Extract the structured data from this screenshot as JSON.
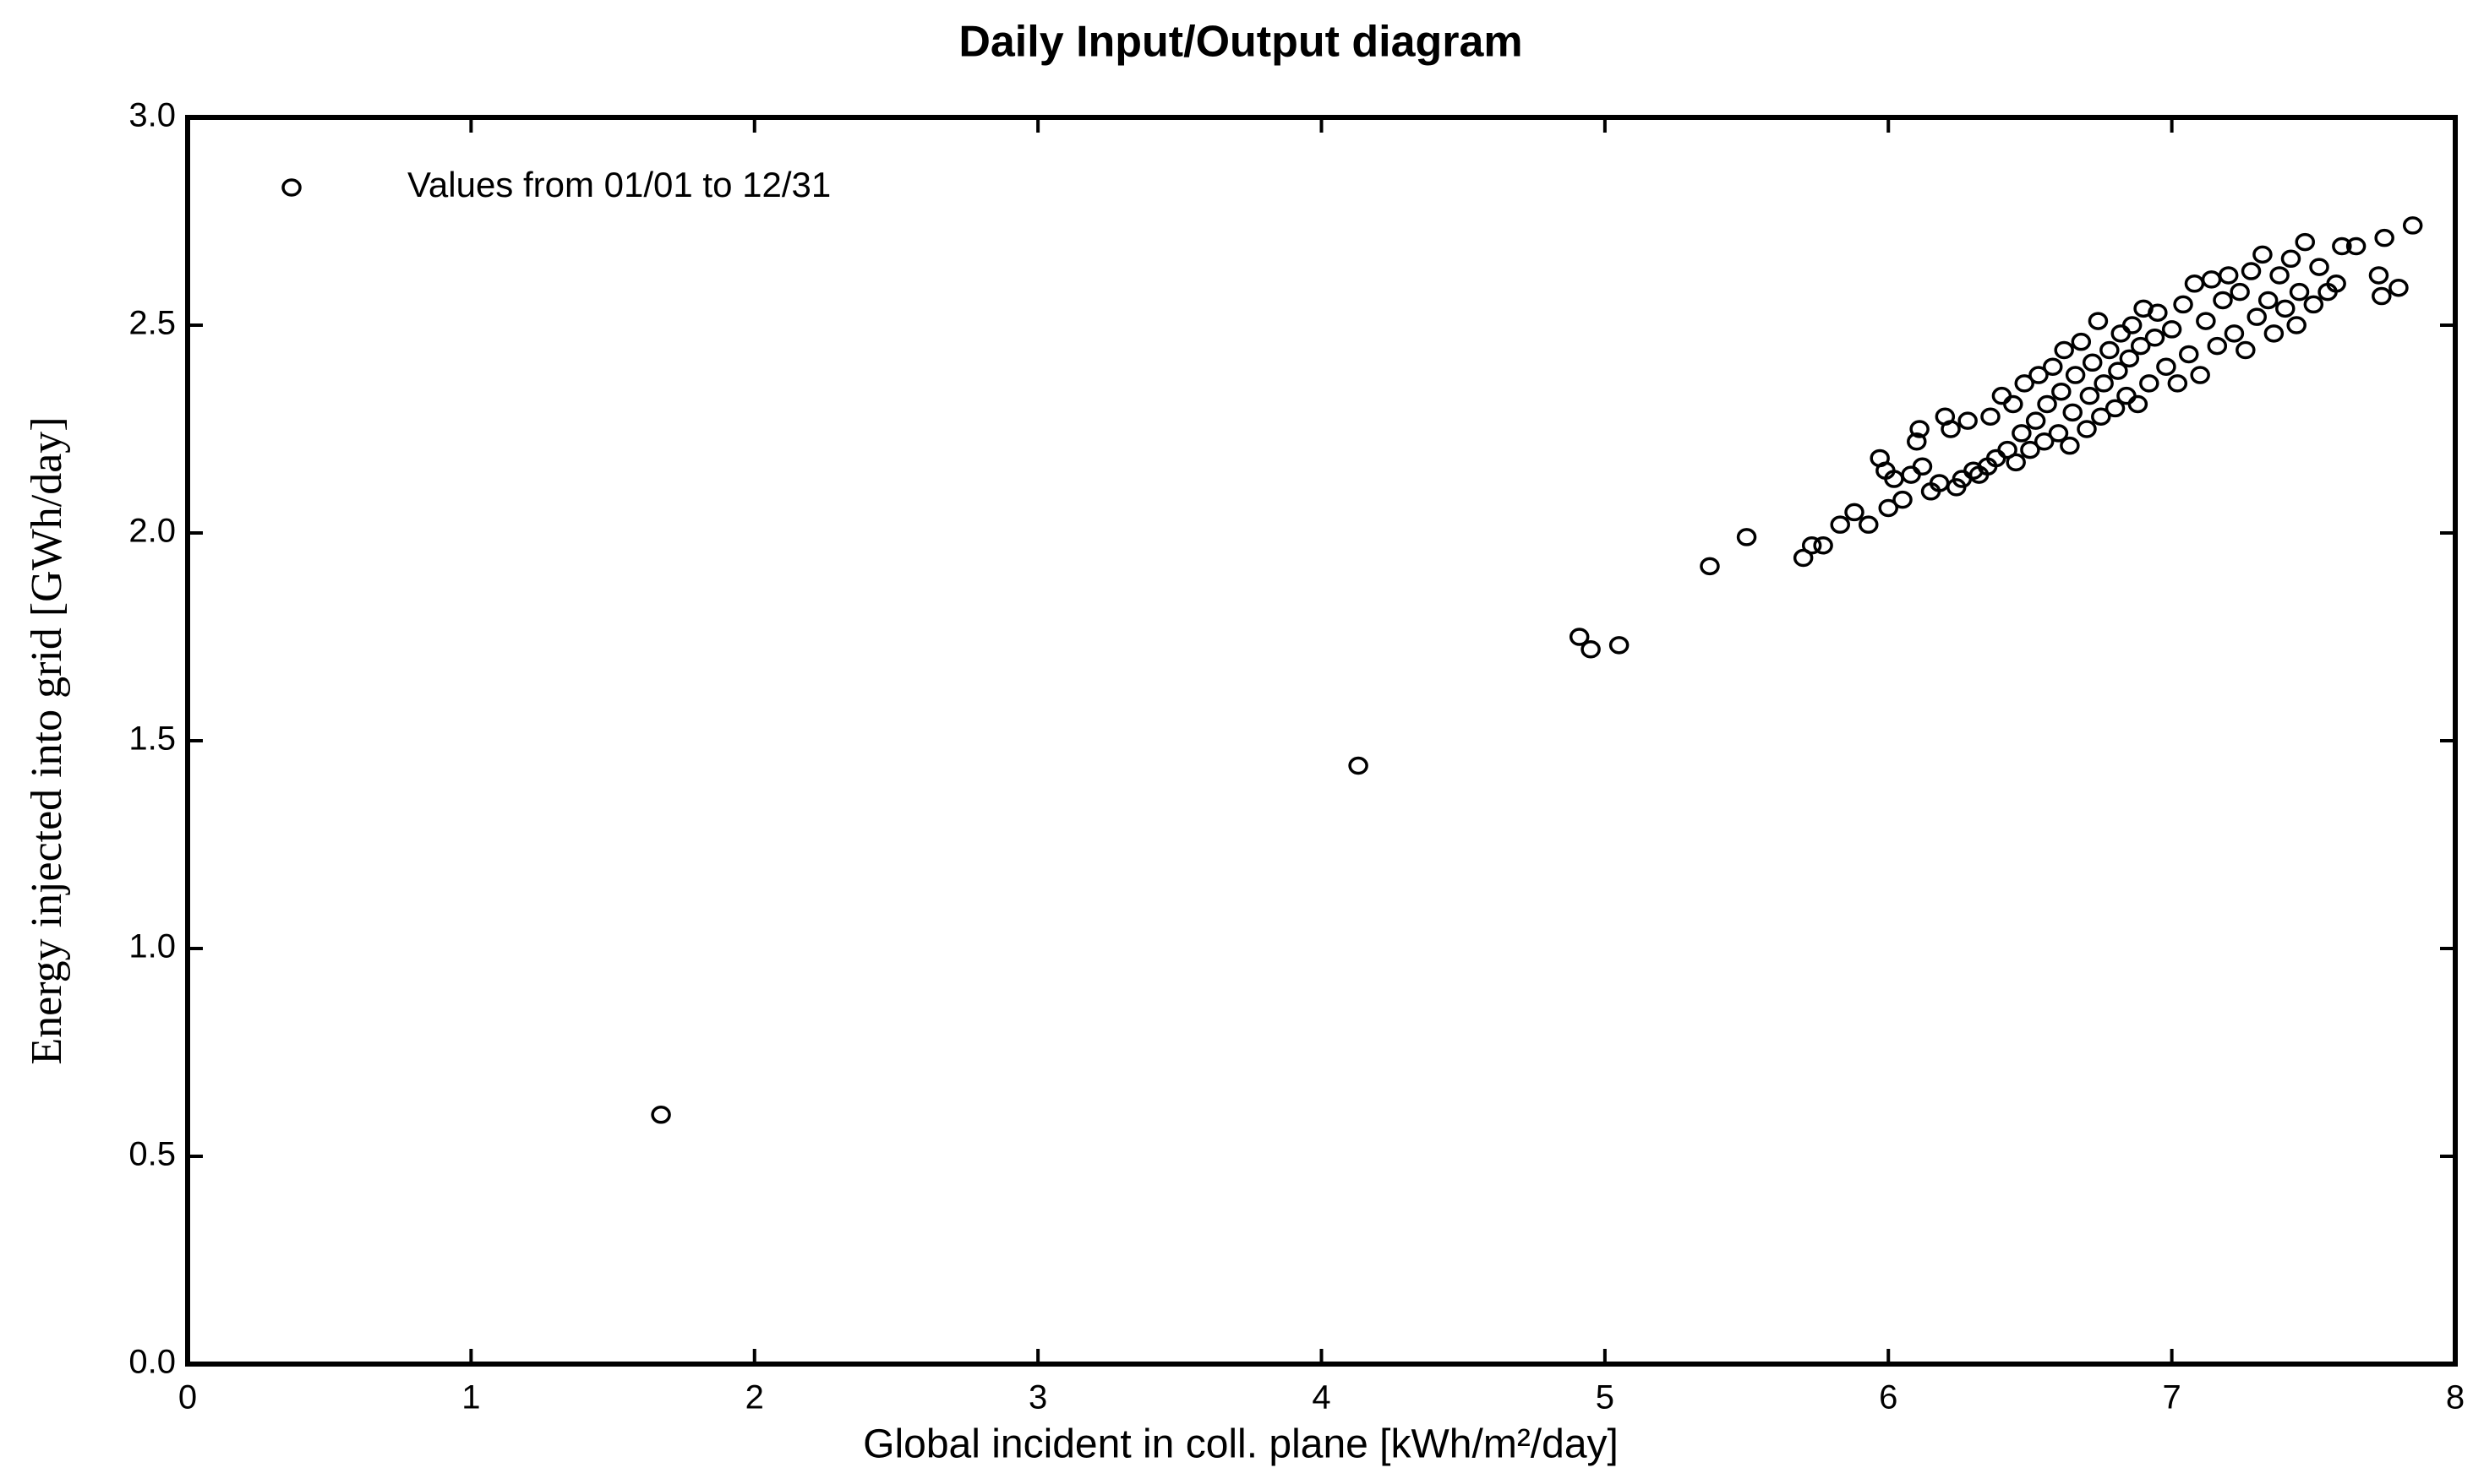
{
  "chart_data": {
    "type": "scatter",
    "title": "Daily Input/Output diagram",
    "xlabel": "Global incident in coll. plane [kWh/m²/day]",
    "ylabel": "Energy injected into grid [GWh/day]",
    "legend": "upper left",
    "series": [
      {
        "name": "Values from 01/01 to 12/31",
        "color": "#000000",
        "x": [
          1.67,
          4.13,
          4.91,
          4.95,
          5.05,
          5.37,
          5.5,
          5.7,
          5.73,
          5.77,
          5.83,
          5.88,
          5.93,
          5.97,
          5.99,
          6.0,
          6.02,
          6.05,
          6.08,
          6.1,
          6.11,
          6.12,
          6.15,
          6.18,
          6.2,
          6.22,
          6.24,
          6.26,
          6.28,
          6.3,
          6.32,
          6.35,
          6.36,
          6.38,
          6.4,
          6.42,
          6.44,
          6.45,
          6.47,
          6.48,
          6.5,
          6.52,
          6.53,
          6.55,
          6.56,
          6.58,
          6.6,
          6.61,
          6.62,
          6.64,
          6.65,
          6.66,
          6.68,
          6.7,
          6.71,
          6.72,
          6.74,
          6.75,
          6.76,
          6.78,
          6.8,
          6.81,
          6.82,
          6.84,
          6.85,
          6.86,
          6.88,
          6.89,
          6.9,
          6.92,
          6.94,
          6.95,
          6.98,
          7.0,
          7.02,
          7.04,
          7.06,
          7.08,
          7.1,
          7.12,
          7.14,
          7.16,
          7.18,
          7.2,
          7.22,
          7.24,
          7.26,
          7.28,
          7.3,
          7.32,
          7.34,
          7.36,
          7.38,
          7.4,
          7.42,
          7.44,
          7.45,
          7.47,
          7.5,
          7.52,
          7.55,
          7.58,
          7.6,
          7.65,
          7.73,
          7.74,
          7.75,
          7.8,
          7.85
        ],
        "y": [
          0.6,
          1.44,
          1.75,
          1.72,
          1.73,
          1.92,
          1.99,
          1.94,
          1.97,
          1.97,
          2.02,
          2.05,
          2.02,
          2.18,
          2.15,
          2.06,
          2.13,
          2.08,
          2.14,
          2.22,
          2.25,
          2.16,
          2.1,
          2.12,
          2.28,
          2.25,
          2.11,
          2.13,
          2.27,
          2.15,
          2.14,
          2.16,
          2.28,
          2.18,
          2.33,
          2.2,
          2.31,
          2.17,
          2.24,
          2.36,
          2.2,
          2.27,
          2.38,
          2.22,
          2.31,
          2.4,
          2.24,
          2.34,
          2.44,
          2.21,
          2.29,
          2.38,
          2.46,
          2.25,
          2.33,
          2.41,
          2.51,
          2.28,
          2.36,
          2.44,
          2.3,
          2.39,
          2.48,
          2.33,
          2.42,
          2.5,
          2.31,
          2.45,
          2.54,
          2.36,
          2.47,
          2.53,
          2.4,
          2.49,
          2.36,
          2.55,
          2.43,
          2.6,
          2.38,
          2.51,
          2.61,
          2.45,
          2.56,
          2.62,
          2.48,
          2.58,
          2.44,
          2.63,
          2.52,
          2.67,
          2.56,
          2.48,
          2.62,
          2.54,
          2.66,
          2.5,
          2.58,
          2.7,
          2.55,
          2.64,
          2.58,
          2.6,
          2.69,
          2.69,
          2.62,
          2.57,
          2.71,
          2.59,
          2.74
        ]
      }
    ],
    "xlim": [
      0,
      8
    ],
    "xticks": [
      0,
      1,
      2,
      3,
      4,
      5,
      6,
      7,
      8
    ],
    "ylim": [
      0,
      3
    ],
    "yticks": [
      {
        "value": 0,
        "label": "0.0"
      },
      0.5,
      {
        "value": 1,
        "label": "1.0"
      },
      1.5,
      {
        "value": 2,
        "label": "2.0"
      },
      2.5,
      {
        "value": 3,
        "label": "3.0"
      }
    ]
  }
}
